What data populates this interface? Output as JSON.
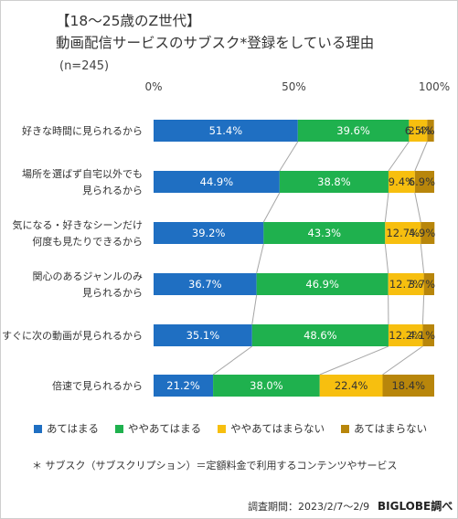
{
  "title_line1": "【18～25歳のZ世代】",
  "title_line2": "動画配信サービスのサブスク*登録をしている理由",
  "sample": "(n=245)",
  "footnote": "＊ サブスク（サブスクリプション）＝定額料金で利用するコンテンツやサービス",
  "survey_period": "調査期間：2023/2/7～2/9",
  "brand": "BIGLOBE調べ",
  "colors": {
    "s1": "#1f6fc2",
    "s2": "#1fb14e",
    "s3": "#f7bf0f",
    "s4": "#b8860b"
  },
  "chart_data": {
    "type": "bar",
    "orientation": "horizontal",
    "stacked": true,
    "percent": true,
    "x_ticks": [
      "0%",
      "50%",
      "100%"
    ],
    "xlim": [
      0,
      100
    ],
    "legend_position": "bottom",
    "categories": [
      [
        "好きな時間に見られるから"
      ],
      [
        "場所を選ばず自宅以外でも",
        "見られるから"
      ],
      [
        "気になる・好きなシーンだけ",
        "何度も見たりできるから"
      ],
      [
        "関心のあるジャンルのみ",
        "見られるから"
      ],
      [
        "すぐに次の動画が見られるから"
      ],
      [
        "倍速で見られるから"
      ]
    ],
    "series": [
      {
        "name": "あてはまる",
        "values": [
          51.4,
          44.9,
          39.2,
          36.7,
          35.1,
          21.2
        ]
      },
      {
        "name": "ややあてはまる",
        "values": [
          39.6,
          38.8,
          43.3,
          46.9,
          48.6,
          38.0
        ]
      },
      {
        "name": "ややあてはまらない",
        "values": [
          6.5,
          9.4,
          12.7,
          12.7,
          12.2,
          22.4
        ]
      },
      {
        "name": "あてはまらない",
        "values": [
          2.4,
          6.9,
          4.9,
          3.7,
          4.1,
          18.4
        ]
      }
    ]
  }
}
